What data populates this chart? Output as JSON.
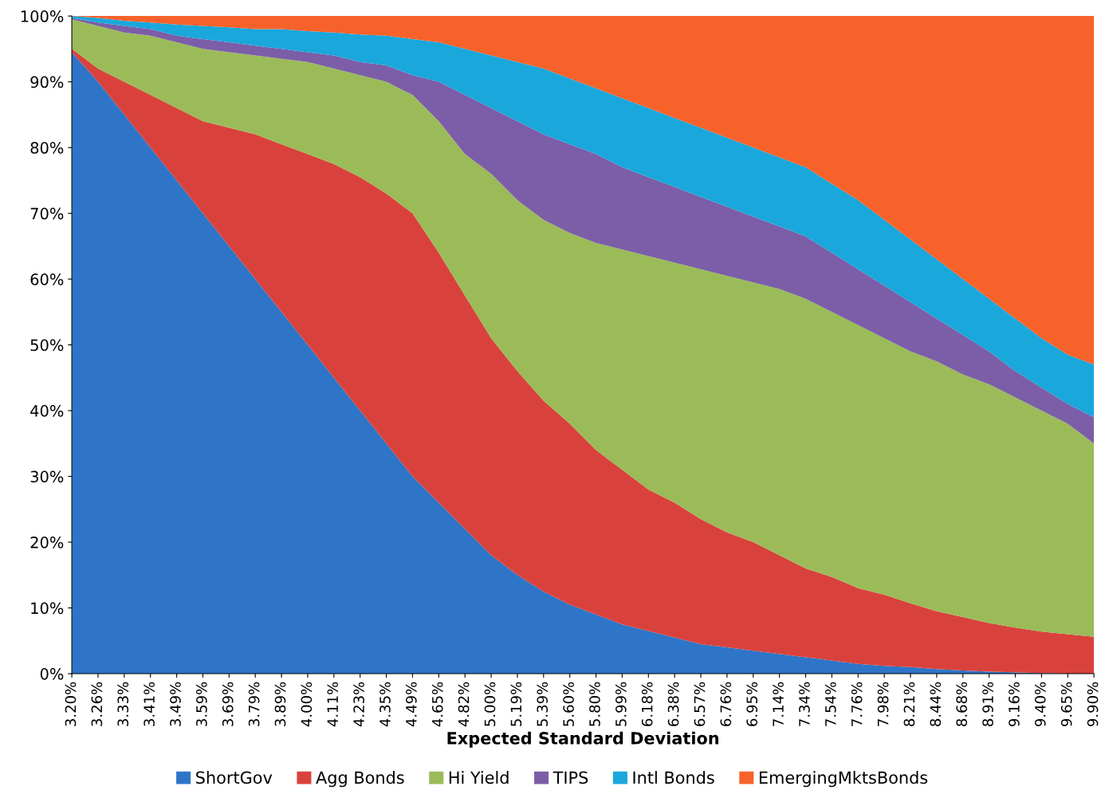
{
  "chart_data": {
    "type": "area",
    "stacked": true,
    "xlabel": "Expected Standard Deviation",
    "categories": [
      "3.20%",
      "3.26%",
      "3.33%",
      "3.41%",
      "3.49%",
      "3.59%",
      "3.69%",
      "3.79%",
      "3.89%",
      "4.00%",
      "4.11%",
      "4.23%",
      "4.35%",
      "4.49%",
      "4.65%",
      "4.82%",
      "5.00%",
      "5.19%",
      "5.39%",
      "5.60%",
      "5.80%",
      "5.99%",
      "6.18%",
      "6.38%",
      "6.57%",
      "6.76%",
      "6.95%",
      "7.14%",
      "7.34%",
      "7.54%",
      "7.76%",
      "7.98%",
      "8.21%",
      "8.44%",
      "8.68%",
      "8.91%",
      "9.16%",
      "9.40%",
      "9.65%",
      "9.90%"
    ],
    "series": [
      {
        "name": "ShortGov",
        "color": "#2e75c8",
        "values": [
          94.5,
          90,
          85,
          80,
          75,
          70,
          65,
          60,
          55,
          50,
          45,
          40,
          35,
          30,
          26,
          22,
          18,
          15,
          12.5,
          10.5,
          9,
          7.5,
          6.5,
          5.5,
          4.5,
          4,
          3.5,
          3,
          2.5,
          2,
          1.5,
          1.2,
          1,
          0.7,
          0.5,
          0.3,
          0.2,
          0.1,
          0,
          0
        ]
      },
      {
        "name": "Agg Bonds",
        "color": "#d9423c",
        "values": [
          0.5,
          2,
          5,
          8,
          11,
          14,
          18,
          22,
          25.5,
          29,
          32.5,
          35.5,
          38,
          40,
          38,
          35.5,
          33,
          31,
          29,
          27.5,
          25,
          23.5,
          21.5,
          20.5,
          19,
          17.5,
          16.5,
          15,
          13.5,
          12.7,
          11.5,
          10.8,
          9.7,
          8.8,
          8.1,
          7.4,
          6.8,
          6.3,
          6,
          5.6
        ]
      },
      {
        "name": "Hi Yield",
        "color": "#9bbb59",
        "values": [
          4.5,
          6.5,
          7.5,
          9,
          10,
          11,
          11.5,
          12,
          13,
          14,
          14.5,
          15.5,
          17,
          18,
          20,
          21.5,
          25,
          26,
          27.5,
          29,
          31.5,
          33.5,
          35.5,
          36.5,
          38,
          39,
          39.5,
          40.5,
          41,
          40.3,
          40,
          39,
          38.3,
          38,
          36.9,
          36.3,
          35,
          33.6,
          32,
          29.4
        ]
      },
      {
        "name": "TIPS",
        "color": "#7b5ea7",
        "values": [
          0.2,
          0.5,
          1,
          1,
          1,
          1.5,
          1.5,
          1.5,
          1.5,
          1.5,
          2,
          2,
          2.5,
          3,
          6,
          9,
          10,
          12,
          13,
          13.5,
          13.5,
          12.5,
          12,
          11.5,
          11,
          10.5,
          10,
          9.5,
          9.5,
          9,
          8.5,
          8,
          7.5,
          6.5,
          6,
          5,
          4,
          3.5,
          3,
          4
        ]
      },
      {
        "name": "Intl Bonds",
        "color": "#1aa7dc",
        "values": [
          0.3,
          0.7,
          0.8,
          1,
          1.7,
          2,
          2.3,
          2.5,
          3,
          3.2,
          3.5,
          4.2,
          4.5,
          5.5,
          6,
          7,
          8,
          9,
          10,
          10,
          10,
          10.5,
          10.5,
          10.5,
          10.5,
          10.5,
          10.5,
          10.5,
          10.5,
          10.5,
          10.5,
          10,
          9.5,
          9,
          8.5,
          8,
          8,
          7.5,
          7.5,
          8
        ]
      },
      {
        "name": "EmergingMktsBonds",
        "color": "#f7622b",
        "values": [
          0,
          0.3,
          0.7,
          1,
          1.3,
          1.5,
          1.7,
          2,
          2,
          2.3,
          2.5,
          2.8,
          3,
          3.5,
          4,
          5,
          6,
          7,
          8,
          9.5,
          11,
          12.5,
          14,
          15.5,
          17,
          18.5,
          20,
          21.5,
          23,
          25.5,
          28,
          31,
          34,
          37,
          40,
          43,
          46,
          49,
          51.5,
          53
        ]
      }
    ],
    "ylim": [
      0,
      100
    ],
    "yticks": [
      {
        "value": 0,
        "label": "0%"
      },
      {
        "value": 10,
        "label": "10%"
      },
      {
        "value": 20,
        "label": "20%"
      },
      {
        "value": 30,
        "label": "30%"
      },
      {
        "value": 40,
        "label": "40%"
      },
      {
        "value": 50,
        "label": "50%"
      },
      {
        "value": 60,
        "label": "60%"
      },
      {
        "value": 70,
        "label": "70%"
      },
      {
        "value": 80,
        "label": "80%"
      },
      {
        "value": 90,
        "label": "90%"
      },
      {
        "value": 100,
        "label": "100%"
      }
    ],
    "legend": "bottom"
  }
}
